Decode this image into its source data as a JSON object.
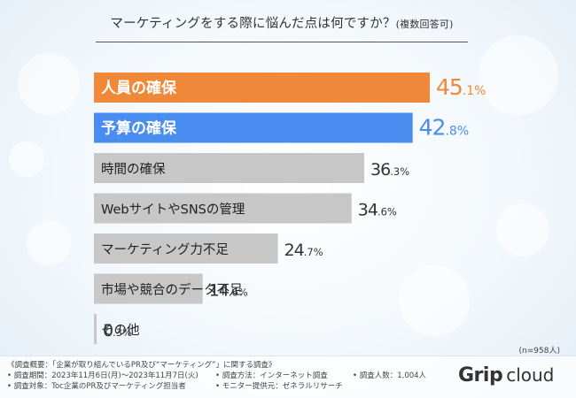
{
  "chart_data": {
    "type": "bar",
    "orientation": "horizontal",
    "title": "マーケティングをする際に悩んだ点は何ですか？",
    "title_note": "(複数回答可)",
    "categories": [
      "人員の確保",
      "予算の確保",
      "時間の確保",
      "WebサイトやSNSの管理",
      "マーケティング力不足",
      "市場や競合のデータ不足",
      "その他"
    ],
    "values": [
      45.1,
      42.8,
      36.3,
      34.6,
      24.7,
      14.6,
      0.3
    ],
    "value_int_labels": [
      "45",
      "42",
      "36",
      "34",
      "24",
      "14",
      "0"
    ],
    "value_dec_labels": [
      ".1%",
      ".8%",
      ".3%",
      ".6%",
      ".7%",
      ".6%",
      ".3%"
    ],
    "bar_colors": [
      "#f0883a",
      "#4a8df0",
      "#c7c7c7",
      "#c7c7c7",
      "#c7c7c7",
      "#c7c7c7",
      "#c7c7c7"
    ],
    "value_colors": [
      "#f0883a",
      "#4a8df0",
      "#333333",
      "#333333",
      "#333333",
      "#333333",
      "#333333"
    ],
    "xlim": [
      0,
      45.1
    ],
    "sample_note": "(n=958人)"
  },
  "footer": {
    "line1": "《調査概要：「企業が取り組んでいるPR及び“マーケティング”」に関する調査》",
    "period": "• 調査期間：2023年11月6日(月)〜2023年11月7日(火)",
    "method": "• 調査方法：インターネット調査",
    "count": "• 調査人数：1,004人",
    "target": "• 調査対象：Toc企業のPR及びマーケティング担当者",
    "monitor": "• モニター提供元：ゼネラルリサーチ"
  },
  "logo": {
    "brand": "Grip",
    "suffix": "cloud"
  }
}
